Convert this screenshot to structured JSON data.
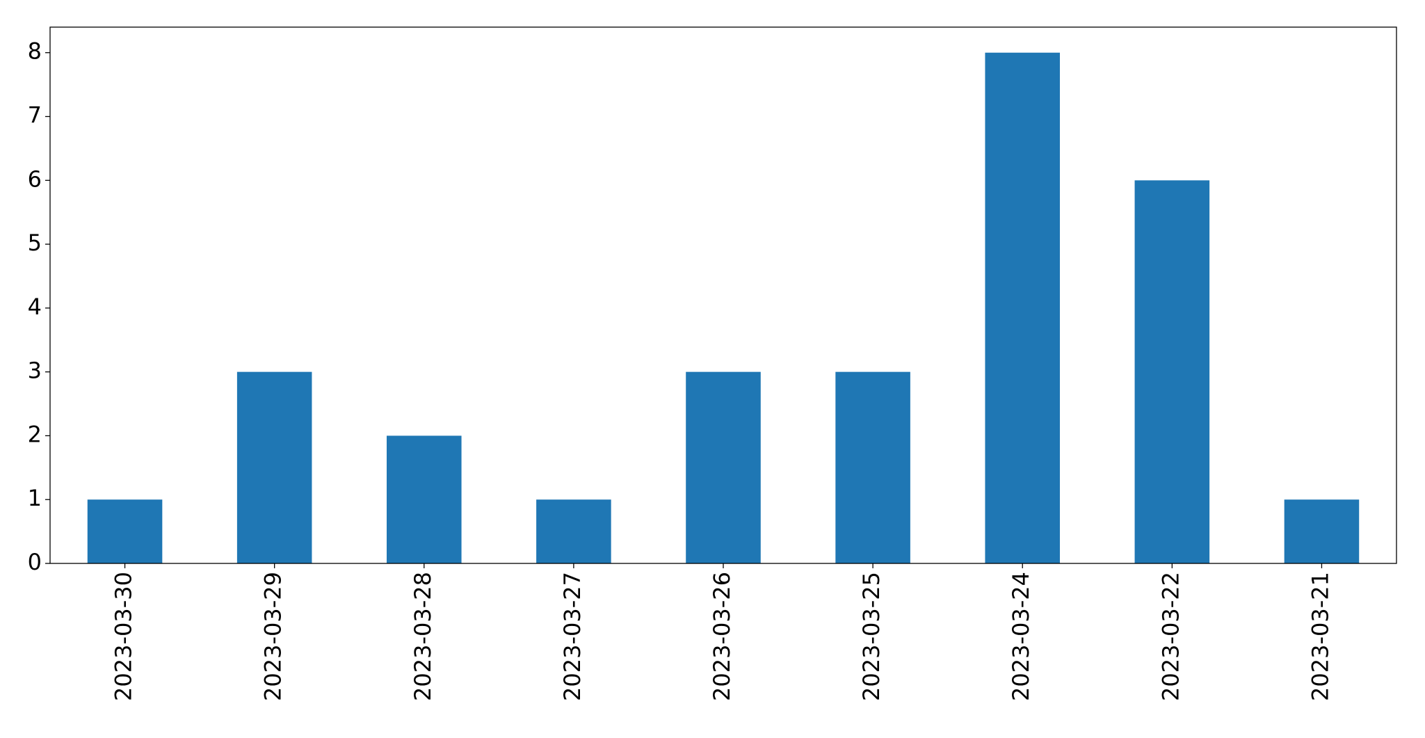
{
  "chart_data": {
    "type": "bar",
    "categories": [
      "2023-03-30",
      "2023-03-29",
      "2023-03-28",
      "2023-03-27",
      "2023-03-26",
      "2023-03-25",
      "2023-03-24",
      "2023-03-22",
      "2023-03-21"
    ],
    "values": [
      1,
      3,
      2,
      1,
      3,
      3,
      8,
      6,
      1
    ],
    "color": "#1f77b4",
    "ylim": [
      0,
      8.4
    ],
    "yticks": [
      0,
      1,
      2,
      3,
      4,
      5,
      6,
      7,
      8
    ],
    "grid": false
  }
}
